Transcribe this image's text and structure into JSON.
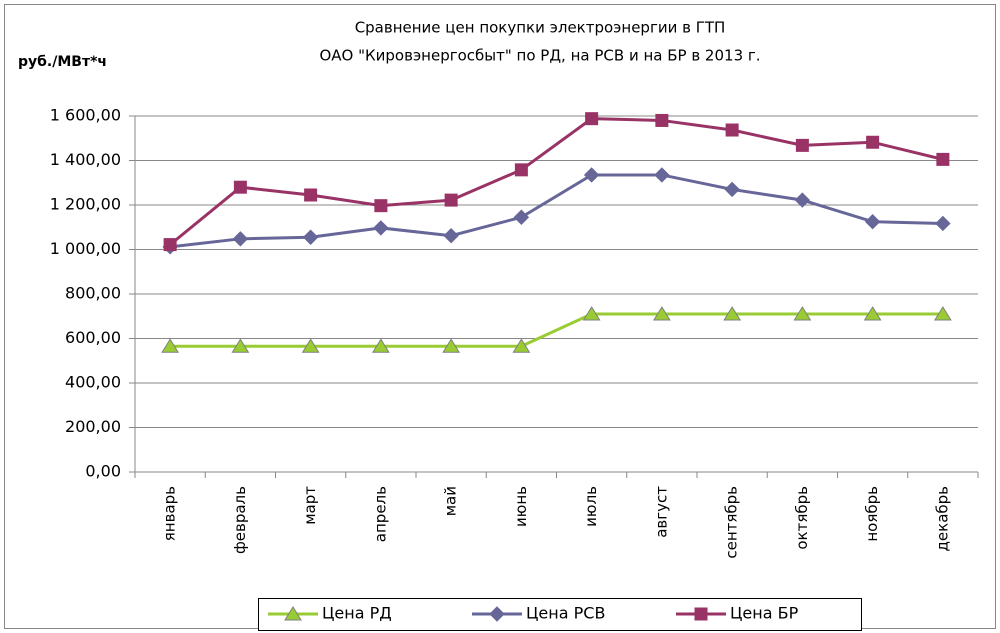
{
  "chart_data": {
    "type": "line",
    "title": [
      "Сравнение цен покупки электроэнергии в ГТП",
      "ОАО \"Кировэнергосбыт\" по РД, на РСВ и на БР в 2013 г."
    ],
    "y_label": "руб./МВт*ч",
    "categories": [
      "январь",
      "февраль",
      "март",
      "апрель",
      "май",
      "июнь",
      "июль",
      "август",
      "сентябрь",
      "октябрь",
      "ноябрь",
      "декабрь"
    ],
    "series": [
      {
        "name": "Цена РД",
        "color": "#99cc33",
        "marker": "triangle",
        "values": [
          565,
          565,
          565,
          565,
          565,
          565,
          710,
          710,
          710,
          710,
          710,
          710
        ]
      },
      {
        "name": "Цена РСВ",
        "color": "#666699",
        "marker": "diamond",
        "values": [
          1012,
          1048,
          1055,
          1097,
          1062,
          1145,
          1335,
          1335,
          1270,
          1222,
          1125,
          1117
        ]
      },
      {
        "name": "Цена БР",
        "color": "#993366",
        "marker": "square",
        "values": [
          1022,
          1280,
          1245,
          1197,
          1222,
          1358,
          1588,
          1580,
          1537,
          1468,
          1482,
          1405
        ]
      }
    ],
    "ylim": [
      0,
      1600
    ],
    "yticks": [
      {
        "value": 0,
        "label": "0,00"
      },
      {
        "value": 200,
        "label": "200,00"
      },
      {
        "value": 400,
        "label": "400,00"
      },
      {
        "value": 600,
        "label": "600,00"
      },
      {
        "value": 800,
        "label": "800,00"
      },
      {
        "value": 1000,
        "label": "1 000,00"
      },
      {
        "value": 1200,
        "label": "1 200,00"
      },
      {
        "value": 1400,
        "label": "1 400,00"
      },
      {
        "value": 1600,
        "label": "1 600,00"
      }
    ],
    "grid": true,
    "legend": "bottom"
  }
}
